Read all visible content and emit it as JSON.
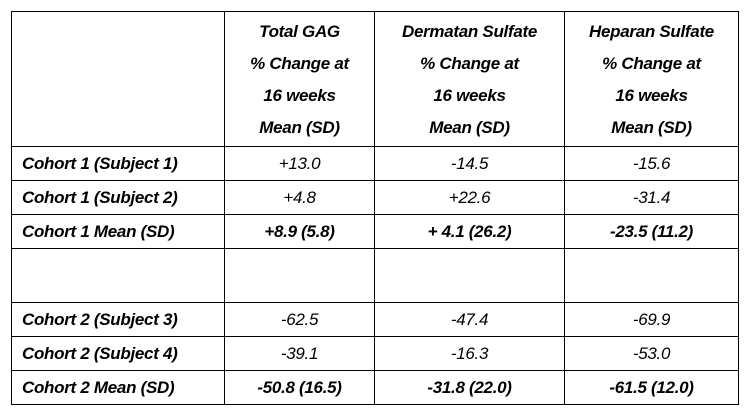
{
  "table": {
    "headers": [
      "",
      [
        "Total GAG",
        "% Change at",
        "16 weeks",
        "Mean (SD)"
      ],
      [
        "Dermatan Sulfate",
        "% Change at",
        "16 weeks",
        "Mean (SD)"
      ],
      [
        "Heparan Sulfate",
        "% Change at",
        "16 weeks",
        "Mean (SD)"
      ]
    ],
    "rows": [
      {
        "label": "Cohort 1 (Subject 1)",
        "values": [
          "+13.0",
          "-14.5",
          "-15.6"
        ],
        "bold": false
      },
      {
        "label": "Cohort 1 (Subject 2)",
        "values": [
          "+4.8",
          "+22.6",
          "-31.4"
        ],
        "bold": false
      },
      {
        "label": "Cohort 1 Mean (SD)",
        "values": [
          "+8.9 (5.8)",
          "+ 4.1 (26.2)",
          "-23.5 (11.2)"
        ],
        "bold": true
      },
      {
        "label": "",
        "values": [
          "",
          "",
          ""
        ],
        "spacer": true
      },
      {
        "label": "Cohort 2 (Subject 3)",
        "values": [
          "-62.5",
          "-47.4",
          "-69.9"
        ],
        "bold": false
      },
      {
        "label": "Cohort 2 (Subject 4)",
        "values": [
          "-39.1",
          "-16.3",
          "-53.0"
        ],
        "bold": false
      },
      {
        "label": "Cohort 2 Mean (SD)",
        "values": [
          "-50.8 (16.5)",
          "-31.8 (22.0)",
          "-61.5 (12.0)"
        ],
        "bold": true
      }
    ]
  }
}
